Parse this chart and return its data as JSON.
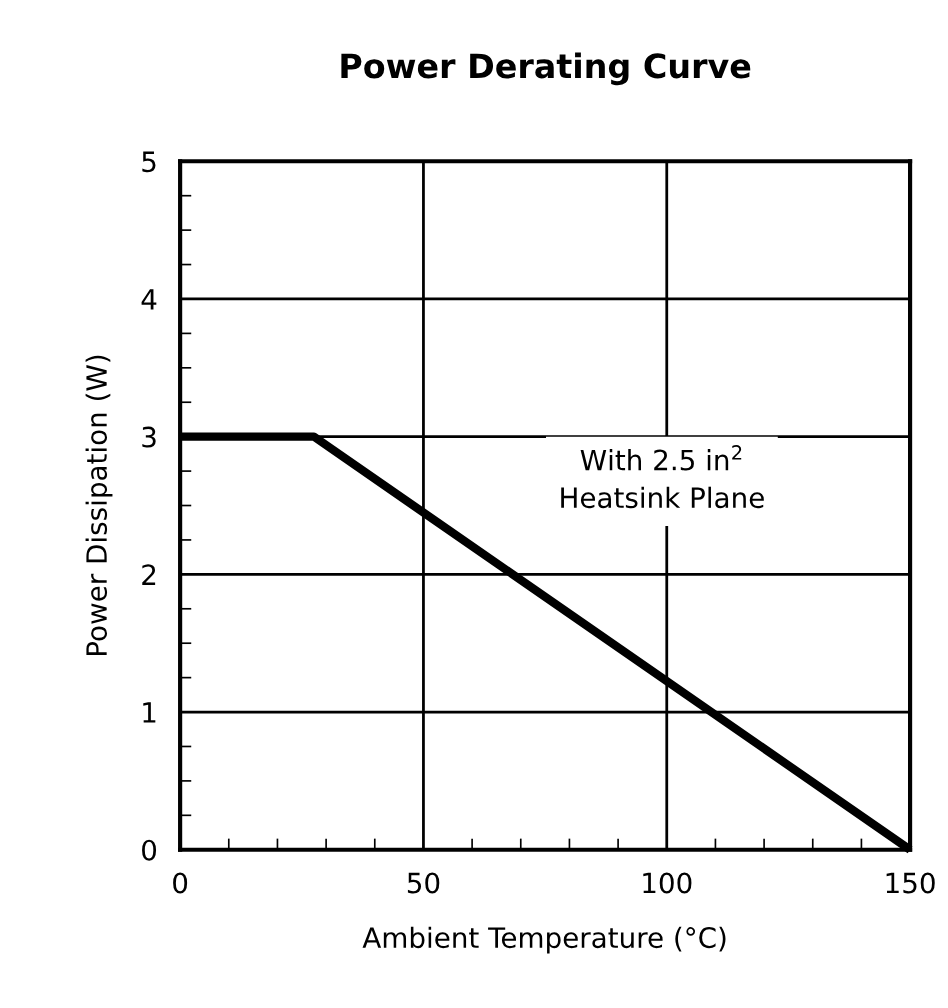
{
  "chart_data": {
    "type": "line",
    "title": "Power Derating Curve",
    "xlabel": "Ambient Temperature (°C)",
    "ylabel": "Power Dissipation (W)",
    "x": [
      0,
      27.5,
      150
    ],
    "series": [
      {
        "color": "#000000",
        "values": [
          3,
          3,
          0
        ]
      }
    ],
    "xlim": [
      0,
      150
    ],
    "xticks": [
      0,
      50,
      100,
      150
    ],
    "ylim": [
      0,
      5
    ],
    "yticks": [
      0,
      1,
      2,
      3,
      4,
      5
    ],
    "grid": true,
    "marker": "none",
    "line_style": "solid",
    "annotations": [
      "With 2.5 in$^{2}$\nHeatsink Plane"
    ]
  }
}
